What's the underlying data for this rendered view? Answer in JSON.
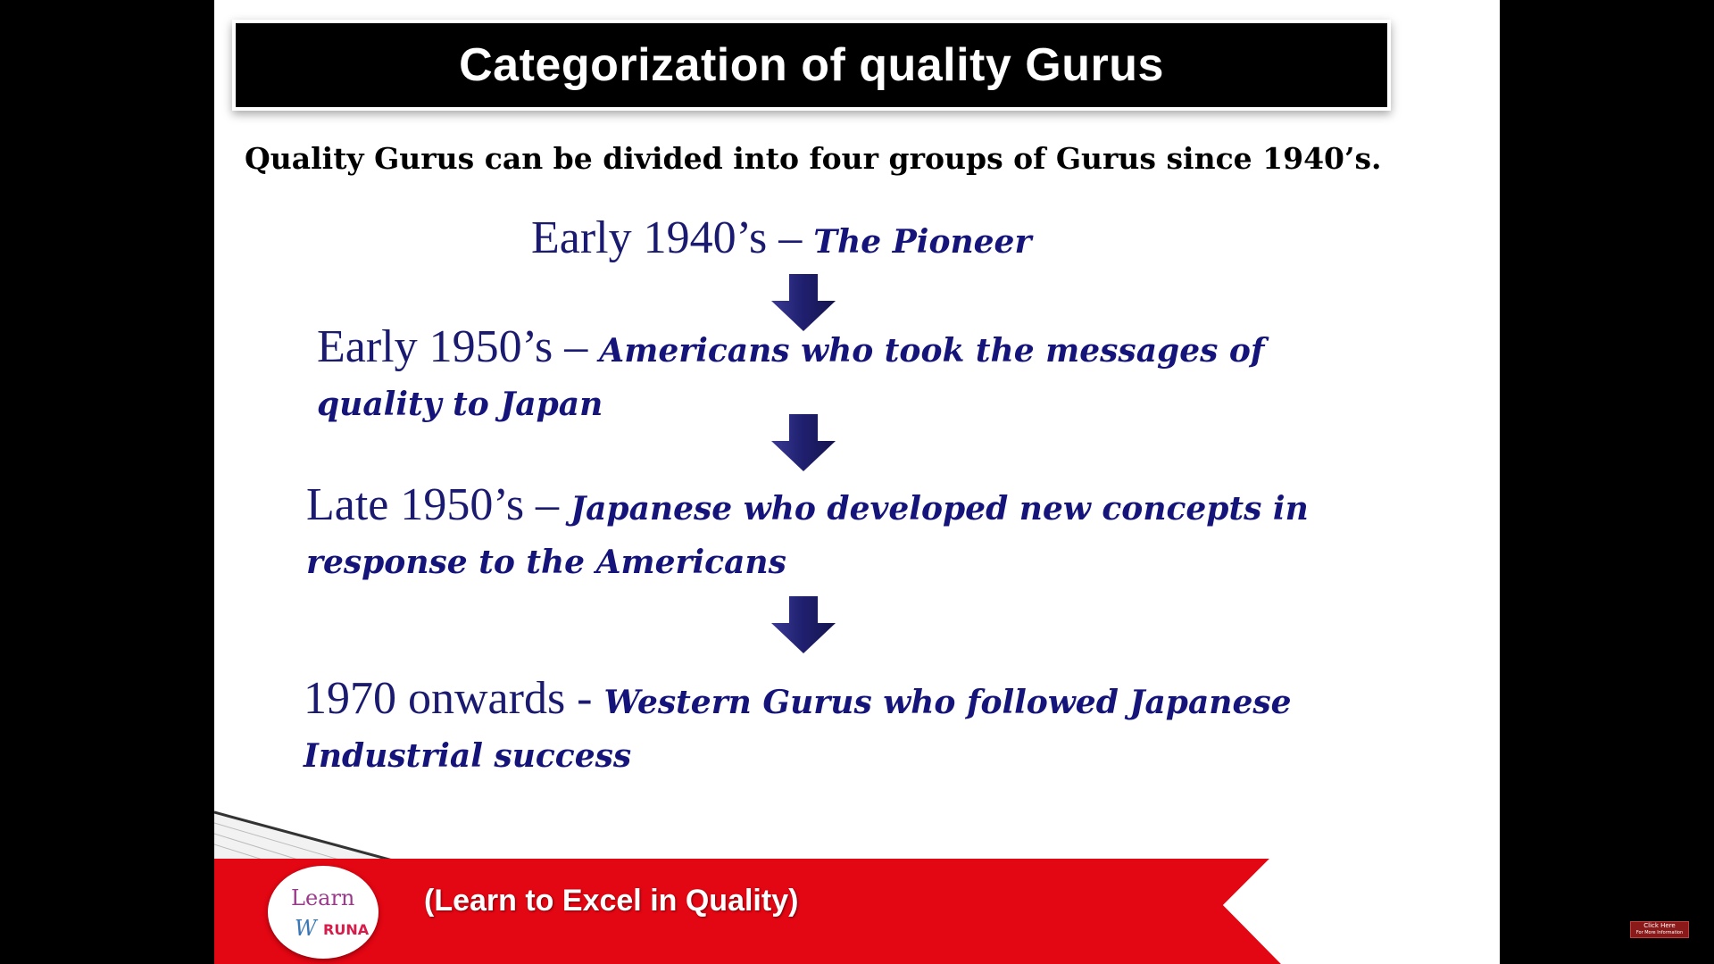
{
  "slide": {
    "title": "Categorization of quality Gurus",
    "intro": "Quality Gurus can be divided into four groups of Gurus since 1940’s.",
    "stages": [
      {
        "era": "Early 1940’s – ",
        "description": "The Pioneer"
      },
      {
        "era": "Early 1950’s – ",
        "description": "Americans who took the messages of quality to Japan"
      },
      {
        "era": "Late 1950’s – ",
        "description": "Japanese who developed new concepts in response to the Americans"
      },
      {
        "era": "1970 onwards -  ",
        "description": "Western Gurus who followed Japanese Industrial success"
      }
    ],
    "arrow_icon": "down-arrow-icon",
    "colors": {
      "title_bg": "#000000",
      "title_text": "#ffffff",
      "stage_text": "#1a1a70",
      "arrow": "#1f1f6e",
      "footer_band": "#e30613"
    }
  },
  "footer": {
    "logo": {
      "line1": "Learn",
      "line2": "W",
      "line3": "RUNA"
    },
    "tagline": "(Learn to Excel in Quality)"
  },
  "overlay": {
    "cta_label": "Click Here",
    "cta_sub": "For More Information"
  }
}
